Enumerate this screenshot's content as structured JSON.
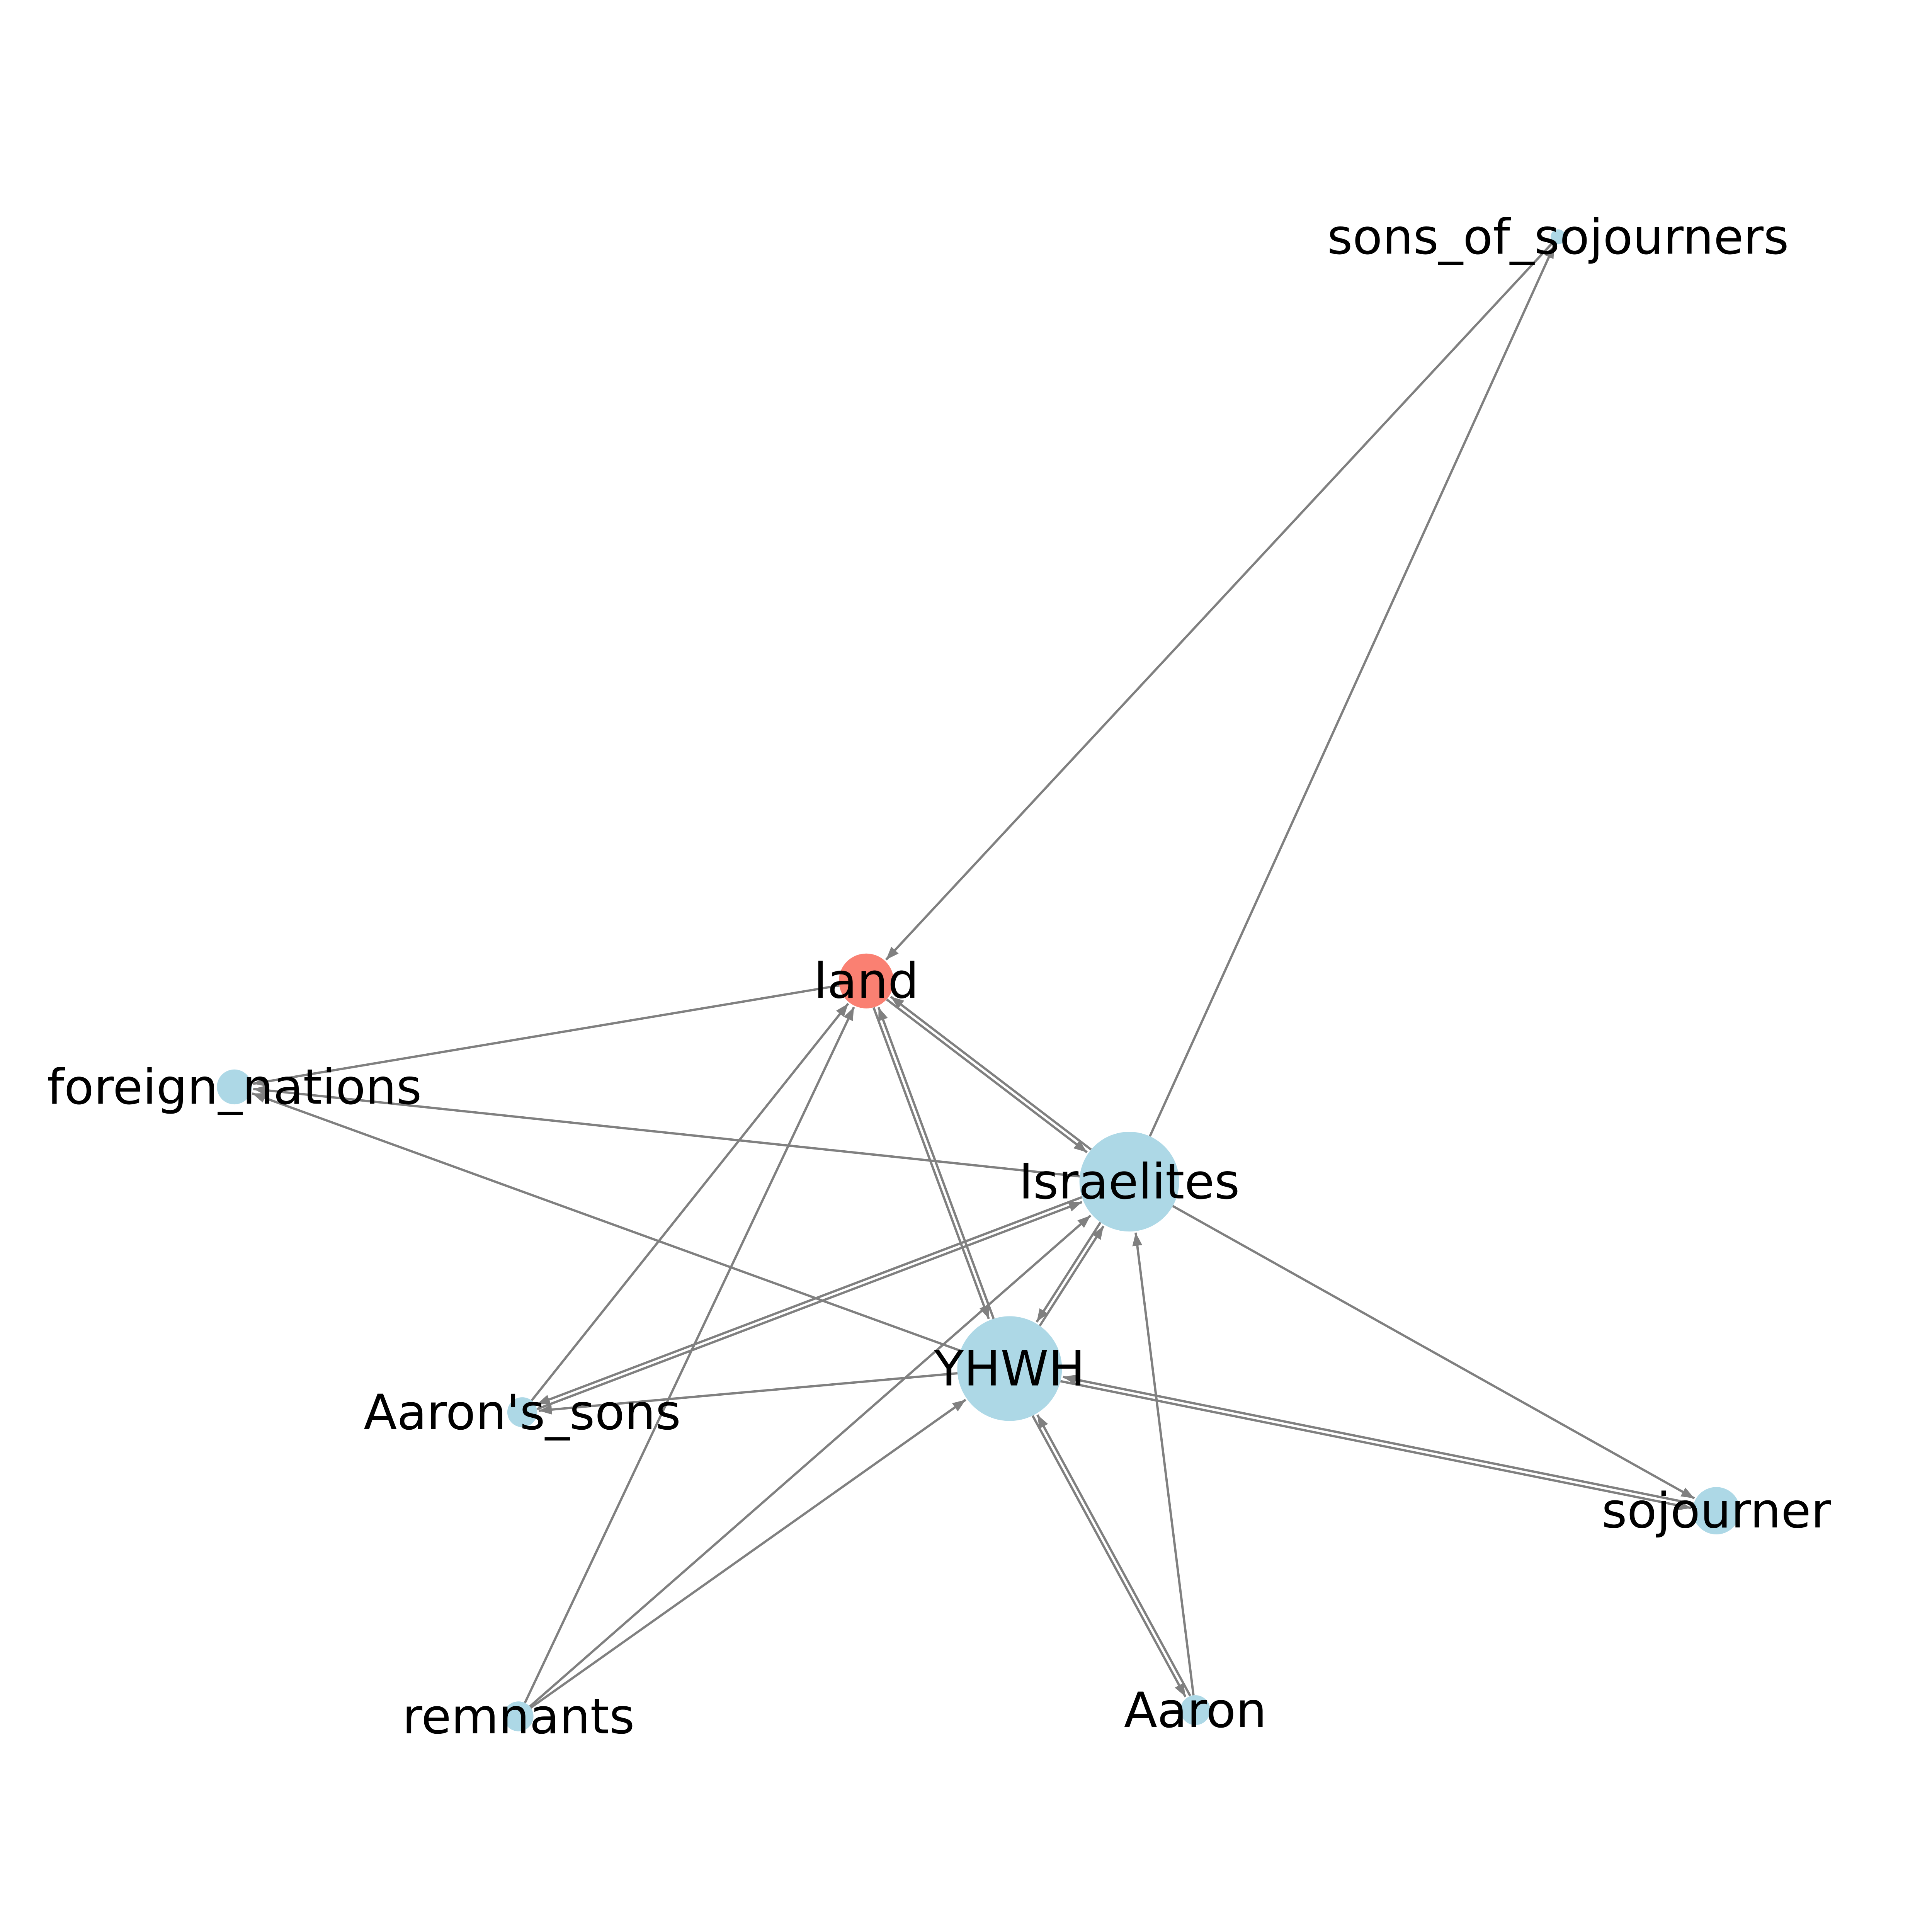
{
  "colors": {
    "edge": "#808080",
    "node_default": "#add8e6",
    "node_highlight": "#fa8072",
    "label": "#000000"
  },
  "nodes": [
    {
      "id": "land",
      "label": "land",
      "highlight": true
    },
    {
      "id": "Israelites",
      "label": "Israelites",
      "highlight": false
    },
    {
      "id": "YHWH",
      "label": "YHWH",
      "highlight": false
    },
    {
      "id": "foreign_nations",
      "label": "foreign_nations",
      "highlight": false
    },
    {
      "id": "Aaron's_sons",
      "label": "Aaron's_sons",
      "highlight": false
    },
    {
      "id": "sons_of_sojourners",
      "label": "sons_of_sojourners",
      "highlight": false
    },
    {
      "id": "sojourner",
      "label": "sojourner",
      "highlight": false
    },
    {
      "id": "remnants",
      "label": "remnants",
      "highlight": false
    },
    {
      "id": "Aaron",
      "label": "Aaron",
      "highlight": false
    }
  ],
  "edges": [
    {
      "from": "Israelites",
      "to": "land"
    },
    {
      "from": "land",
      "to": "Israelites"
    },
    {
      "from": "YHWH",
      "to": "land"
    },
    {
      "from": "land",
      "to": "YHWH"
    },
    {
      "from": "land",
      "to": "foreign_nations"
    },
    {
      "from": "Israelites",
      "to": "foreign_nations"
    },
    {
      "from": "YHWH",
      "to": "foreign_nations"
    },
    {
      "from": "sons_of_sojourners",
      "to": "land"
    },
    {
      "from": "Israelites",
      "to": "sons_of_sojourners"
    },
    {
      "from": "Aaron's_sons",
      "to": "land"
    },
    {
      "from": "remnants",
      "to": "land"
    },
    {
      "from": "YHWH",
      "to": "Israelites"
    },
    {
      "from": "Israelites",
      "to": "YHWH"
    },
    {
      "from": "Israelites",
      "to": "sojourner"
    },
    {
      "from": "Israelites",
      "to": "Aaron's_sons"
    },
    {
      "from": "Aaron's_sons",
      "to": "Israelites"
    },
    {
      "from": "YHWH",
      "to": "Aaron's_sons"
    },
    {
      "from": "remnants",
      "to": "Israelites"
    },
    {
      "from": "remnants",
      "to": "YHWH"
    },
    {
      "from": "Aaron",
      "to": "Israelites"
    },
    {
      "from": "Aaron",
      "to": "YHWH"
    },
    {
      "from": "YHWH",
      "to": "Aaron"
    },
    {
      "from": "sojourner",
      "to": "YHWH"
    },
    {
      "from": "YHWH",
      "to": "sojourner"
    }
  ]
}
